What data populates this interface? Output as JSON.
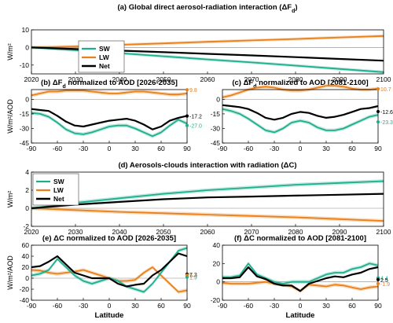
{
  "colors": {
    "SW": "#1fae8d",
    "LW": "#e8801c",
    "Net": "#000000"
  },
  "chart_data": [
    {
      "id": "a",
      "type": "line",
      "title": "(a) Global direct aerosol-radiation interaction (ΔFd)",
      "ylabel": "W/m²",
      "xlabel": "",
      "xlim": [
        2020,
        2100
      ],
      "ylim": [
        -15,
        10
      ],
      "xticks": [
        "2020",
        "2030",
        "2040",
        "2050",
        "2060",
        "2070",
        "2080",
        "2090",
        "2100"
      ],
      "yticks": [
        "-10",
        "0",
        "10"
      ],
      "legend": {
        "position": "bottom-left",
        "entries": [
          "SW",
          "LW",
          "Net"
        ]
      },
      "series": [
        {
          "name": "SW",
          "x": [
            2020,
            2030,
            2040,
            2050,
            2060,
            2070,
            2080,
            2090,
            2100
          ],
          "y": [
            0,
            -1.5,
            -3.2,
            -5,
            -6.8,
            -8.5,
            -10.3,
            -12.2,
            -14
          ]
        },
        {
          "name": "LW",
          "x": [
            2020,
            2030,
            2040,
            2050,
            2060,
            2070,
            2080,
            2090,
            2100
          ],
          "y": [
            0,
            0.6,
            1.5,
            2.3,
            3.2,
            4,
            4.8,
            5.7,
            6.5
          ]
        },
        {
          "name": "Net",
          "x": [
            2020,
            2030,
            2040,
            2050,
            2060,
            2070,
            2080,
            2090,
            2100
          ],
          "y": [
            0,
            -0.9,
            -1.8,
            -2.7,
            -3.6,
            -4.5,
            -5.5,
            -6.5,
            -7.5
          ]
        }
      ]
    },
    {
      "id": "b",
      "type": "line",
      "title": "(b) ΔFd normalized to AOD [2026-2035]",
      "ylabel": "W/m²/AOD",
      "xlabel": "",
      "xlim": [
        -90,
        90
      ],
      "ylim": [
        -45,
        10
      ],
      "xticks": [
        "-90",
        "-60",
        "-30",
        "0",
        "30",
        "60",
        "90"
      ],
      "yticks": [
        "-45",
        "-30",
        "-15",
        "0"
      ],
      "end_labels": [
        {
          "series": "LW",
          "value": 9.8,
          "text": "9.8"
        },
        {
          "series": "Net",
          "value": -17.2,
          "text": "-17.2"
        },
        {
          "series": "SW",
          "value": -27.0,
          "text": "-27.0"
        }
      ],
      "series": [
        {
          "name": "LW",
          "x": [
            -90,
            -80,
            -70,
            -60,
            -50,
            -40,
            -30,
            -20,
            -10,
            0,
            10,
            20,
            30,
            40,
            50,
            60,
            70,
            80,
            90
          ],
          "y": [
            4,
            6,
            8,
            8,
            9,
            9,
            9,
            8,
            7,
            6,
            6,
            7,
            8,
            8,
            7,
            6,
            5,
            5,
            6
          ]
        },
        {
          "name": "Net",
          "x": [
            -90,
            -80,
            -70,
            -60,
            -50,
            -40,
            -30,
            -20,
            -10,
            0,
            10,
            20,
            30,
            40,
            50,
            60,
            70,
            80,
            90
          ],
          "y": [
            -10,
            -11,
            -12,
            -17,
            -23,
            -27,
            -28,
            -26,
            -24,
            -22,
            -21,
            -20,
            -22,
            -26,
            -31,
            -28,
            -22,
            -19,
            -17
          ]
        },
        {
          "name": "SW",
          "x": [
            -90,
            -80,
            -70,
            -60,
            -50,
            -40,
            -30,
            -20,
            -10,
            0,
            10,
            20,
            30,
            40,
            50,
            60,
            70,
            80,
            90
          ],
          "y": [
            -14,
            -15,
            -18,
            -24,
            -31,
            -35,
            -36,
            -34,
            -31,
            -28,
            -27,
            -27,
            -30,
            -34,
            -38,
            -34,
            -27,
            -21,
            -25
          ]
        }
      ]
    },
    {
      "id": "c",
      "type": "line",
      "title": "(c) ΔFd normalized to AOD [2081-2100]",
      "ylabel": "",
      "xlabel": "",
      "xlim": [
        -90,
        90
      ],
      "ylim": [
        -45,
        10
      ],
      "xticks": [
        "-90",
        "-60",
        "-30",
        "0",
        "30",
        "60",
        "90"
      ],
      "yticks": [
        "-45",
        "-30",
        "-15",
        "0"
      ],
      "end_labels": [
        {
          "series": "LW",
          "value": 10.7,
          "text": "10.7"
        },
        {
          "series": "Net",
          "value": -12.6,
          "text": "-12.6"
        },
        {
          "series": "SW",
          "value": -23.3,
          "text": "-23.3"
        }
      ],
      "series": [
        {
          "name": "LW",
          "x": [
            -90,
            -80,
            -70,
            -60,
            -50,
            -40,
            -30,
            -20,
            -10,
            0,
            10,
            20,
            30,
            40,
            50,
            60,
            70,
            80,
            90
          ],
          "y": [
            2,
            4,
            7,
            10,
            12,
            13,
            12,
            10,
            9,
            9,
            10,
            12,
            14,
            14,
            13,
            11,
            10,
            10,
            11
          ]
        },
        {
          "name": "Net",
          "x": [
            -90,
            -80,
            -70,
            -60,
            -50,
            -40,
            -30,
            -20,
            -10,
            0,
            10,
            20,
            30,
            40,
            50,
            60,
            70,
            80,
            90
          ],
          "y": [
            -6,
            -7,
            -8,
            -10,
            -14,
            -19,
            -21,
            -19,
            -15,
            -13,
            -14,
            -17,
            -19,
            -18,
            -16,
            -13,
            -10,
            -9,
            -7
          ]
        },
        {
          "name": "SW",
          "x": [
            -90,
            -80,
            -70,
            -60,
            -50,
            -40,
            -30,
            -20,
            -10,
            0,
            10,
            20,
            30,
            40,
            50,
            60,
            70,
            80,
            90
          ],
          "y": [
            -10,
            -12,
            -15,
            -20,
            -26,
            -32,
            -34,
            -30,
            -24,
            -22,
            -24,
            -29,
            -32,
            -32,
            -30,
            -26,
            -22,
            -18,
            -16
          ]
        }
      ]
    },
    {
      "id": "d",
      "type": "line",
      "title": "(d) Aerosols-clouds interaction with radiation (ΔC)",
      "ylabel": "W/m²",
      "xlabel": "",
      "xlim": [
        2020,
        2100
      ],
      "ylim": [
        -2,
        4
      ],
      "xticks": [
        "2020",
        "2030",
        "2040",
        "2050",
        "2060",
        "2070",
        "2080",
        "2090",
        "2100"
      ],
      "yticks": [
        "-2",
        "0",
        "2",
        "4"
      ],
      "legend": {
        "position": "top-left",
        "entries": [
          "SW",
          "LW",
          "Net"
        ]
      },
      "series": [
        {
          "name": "SW",
          "x": [
            2020,
            2030,
            2040,
            2050,
            2060,
            2070,
            2080,
            2090,
            2100
          ],
          "y": [
            0,
            0.6,
            1.1,
            1.6,
            2.0,
            2.3,
            2.6,
            2.8,
            3.0
          ]
        },
        {
          "name": "LW",
          "x": [
            2020,
            2030,
            2040,
            2050,
            2060,
            2070,
            2080,
            2090,
            2100
          ],
          "y": [
            0,
            -0.2,
            -0.4,
            -0.55,
            -0.7,
            -0.85,
            -1.0,
            -1.2,
            -1.4
          ]
        },
        {
          "name": "Net",
          "x": [
            2020,
            2030,
            2040,
            2050,
            2060,
            2070,
            2080,
            2090,
            2100
          ],
          "y": [
            0,
            0.4,
            0.7,
            1.0,
            1.2,
            1.3,
            1.4,
            1.5,
            1.6
          ]
        }
      ]
    },
    {
      "id": "e",
      "type": "line",
      "title": "(e) ΔC normalized to AOD [2026-2035]",
      "ylabel": "W/m²/AOD",
      "xlabel": "Latitude",
      "xlim": [
        -90,
        90
      ],
      "ylim": [
        -40,
        60
      ],
      "xticks": [
        "-90",
        "-60",
        "-30",
        "0",
        "30",
        "60",
        "90"
      ],
      "yticks": [
        "-40",
        "-20",
        "0",
        "20",
        "40",
        "60"
      ],
      "end_labels": [
        {
          "series": "Net",
          "value": 7.3,
          "text": "7.3"
        },
        {
          "series": "LW",
          "value": 5.4,
          "text": "5.4"
        },
        {
          "series": "SW",
          "value": 1.9,
          "text": "1.9"
        }
      ],
      "series": [
        {
          "name": "SW",
          "x": [
            -90,
            -80,
            -70,
            -60,
            -50,
            -40,
            -30,
            -20,
            -10,
            0,
            10,
            20,
            30,
            40,
            50,
            60,
            70,
            80,
            90
          ],
          "y": [
            5,
            8,
            15,
            35,
            20,
            5,
            -5,
            -10,
            -5,
            0,
            -5,
            -15,
            -20,
            -25,
            -10,
            10,
            30,
            50,
            55
          ]
        },
        {
          "name": "LW",
          "x": [
            -90,
            -80,
            -70,
            -60,
            -50,
            -40,
            -30,
            -20,
            -10,
            0,
            10,
            20,
            30,
            40,
            50,
            60,
            70,
            80,
            90
          ],
          "y": [
            15,
            14,
            10,
            8,
            10,
            12,
            15,
            10,
            5,
            0,
            -5,
            -5,
            -3,
            10,
            20,
            5,
            -10,
            -25,
            -22
          ]
        },
        {
          "name": "Net",
          "x": [
            -90,
            -80,
            -70,
            -60,
            -50,
            -40,
            -30,
            -20,
            -10,
            0,
            10,
            20,
            30,
            40,
            50,
            60,
            70,
            80,
            90
          ],
          "y": [
            20,
            22,
            30,
            40,
            25,
            10,
            5,
            0,
            0,
            0,
            -10,
            -15,
            -12,
            -10,
            5,
            15,
            30,
            45,
            40
          ]
        }
      ]
    },
    {
      "id": "f",
      "type": "line",
      "title": "(f) ΔC normalized to AOD [2081-2100]",
      "ylabel": "",
      "xlabel": "Latitude",
      "xlim": [
        -90,
        90
      ],
      "ylim": [
        -20,
        40
      ],
      "xticks": [
        "-90",
        "-60",
        "-30",
        "0",
        "30",
        "60",
        "90"
      ],
      "yticks": [
        "-20",
        "0",
        "20",
        "40"
      ],
      "end_labels": [
        {
          "series": "SW",
          "value": 4.4,
          "text": "4.4"
        },
        {
          "series": "Net",
          "value": 2.5,
          "text": "2.5"
        },
        {
          "series": "LW",
          "value": -1.9,
          "text": "-1.9"
        }
      ],
      "series": [
        {
          "name": "SW",
          "x": [
            -90,
            -80,
            -70,
            -60,
            -50,
            -40,
            -30,
            -20,
            -10,
            0,
            10,
            20,
            30,
            40,
            50,
            60,
            70,
            80,
            90
          ],
          "y": [
            5,
            5,
            7,
            20,
            8,
            4,
            0,
            -2,
            0,
            0,
            0,
            4,
            8,
            10,
            10,
            14,
            16,
            20,
            18
          ]
        },
        {
          "name": "LW",
          "x": [
            -90,
            -80,
            -70,
            -60,
            -50,
            -40,
            -30,
            -20,
            -10,
            0,
            10,
            20,
            30,
            40,
            50,
            60,
            70,
            80,
            90
          ],
          "y": [
            -1,
            -2,
            -2,
            -2,
            -1,
            0,
            -2,
            -3,
            -5,
            -10,
            -3,
            -4,
            -5,
            -3,
            -4,
            -6,
            -8,
            -6,
            -5
          ]
        },
        {
          "name": "Net",
          "x": [
            -90,
            -80,
            -70,
            -60,
            -50,
            -40,
            -30,
            -20,
            -10,
            0,
            10,
            20,
            30,
            40,
            50,
            60,
            70,
            80,
            90
          ],
          "y": [
            4,
            4,
            5,
            16,
            6,
            3,
            -2,
            -4,
            -4,
            -10,
            -2,
            1,
            4,
            6,
            5,
            8,
            10,
            14,
            16
          ]
        }
      ]
    }
  ]
}
